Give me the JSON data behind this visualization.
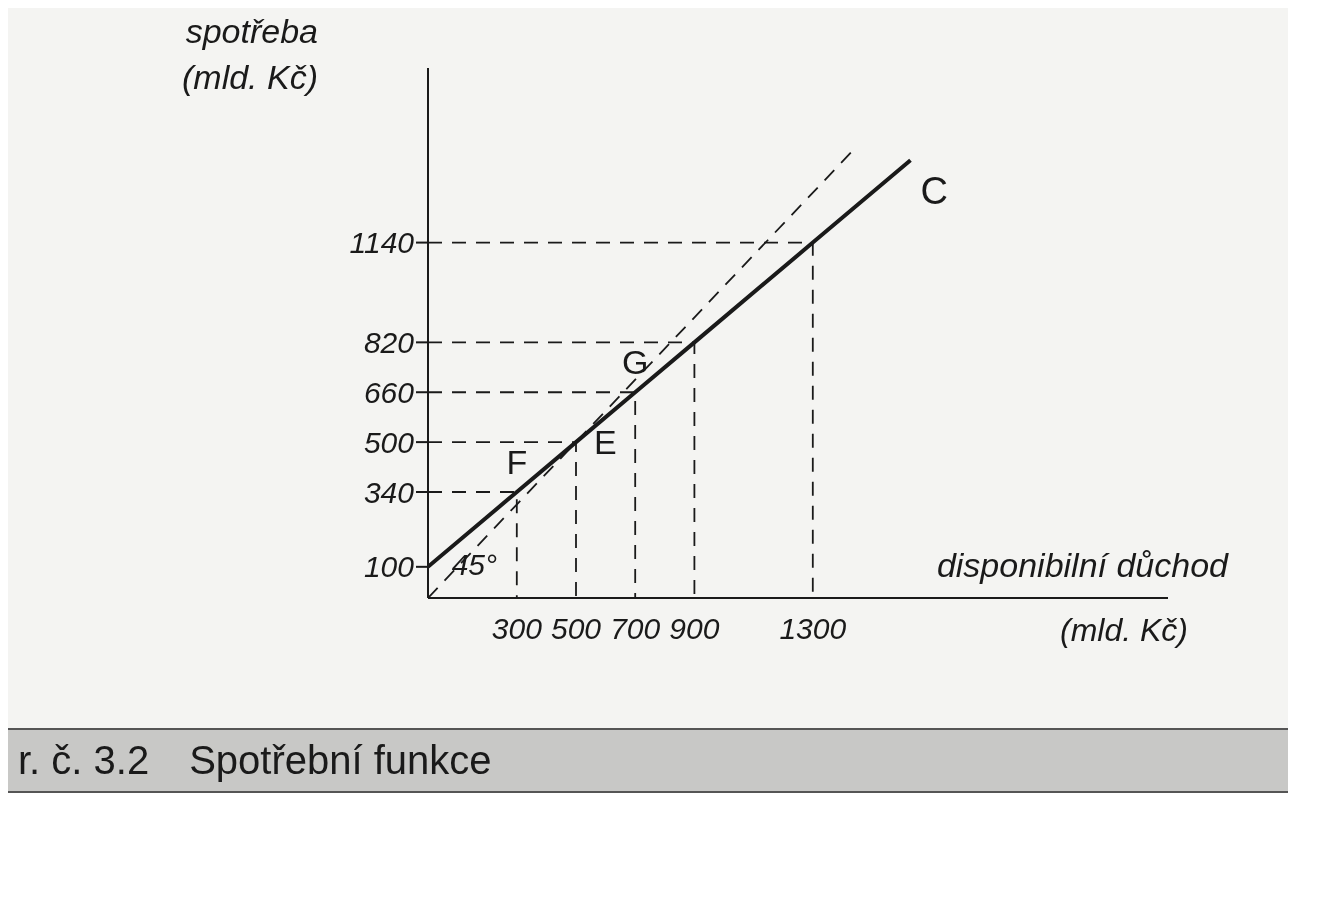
{
  "chart_data": {
    "type": "line",
    "title": "Spotřební funkce",
    "xlabel": "disponibilní důchod (mld. Kč)",
    "ylabel": "spotřeba (mld. Kč)",
    "series": [
      {
        "name": "C",
        "color": "#1a1a1a",
        "line_style": "solid",
        "x": [
          0,
          300,
          500,
          700,
          900,
          1300,
          1630
        ],
        "values": [
          100,
          340,
          500,
          660,
          820,
          1140,
          1404
        ]
      },
      {
        "color": "#1a1a1a",
        "line_style": "dashed",
        "x": [
          0,
          1440
        ],
        "values": [
          0,
          1440
        ]
      },
      {
        "color": "#1a1a1a",
        "line_style": "dashed",
        "x": [
          0,
          300,
          300
        ],
        "values": [
          340,
          340,
          0
        ]
      },
      {
        "color": "#1a1a1a",
        "line_style": "dashed",
        "x": [
          0,
          500,
          500
        ],
        "values": [
          500,
          500,
          0
        ]
      },
      {
        "color": "#1a1a1a",
        "line_style": "dashed",
        "x": [
          0,
          700,
          700
        ],
        "values": [
          660,
          660,
          0
        ]
      },
      {
        "color": "#1a1a1a",
        "line_style": "dashed",
        "x": [
          0,
          900,
          900
        ],
        "values": [
          820,
          820,
          0
        ]
      },
      {
        "color": "#1a1a1a",
        "line_style": "dashed",
        "x": [
          0,
          1300,
          1300
        ],
        "values": [
          1140,
          1140,
          0
        ]
      }
    ],
    "xlim": [
      0,
      2500
    ],
    "ylim": [
      0,
      1700
    ],
    "xticks": [
      300,
      500,
      700,
      900,
      1300
    ],
    "yticks": [
      100,
      340,
      500,
      660,
      820,
      1140
    ],
    "grid": false,
    "legend": false,
    "marker": "none",
    "annotations": [
      {
        "text": "F",
        "x": 300,
        "y": 340
      },
      {
        "text": "E",
        "x": 500,
        "y": 500
      },
      {
        "text": "G",
        "x": 700,
        "y": 660
      },
      "45°",
      "r. č. 3.2"
    ]
  }
}
